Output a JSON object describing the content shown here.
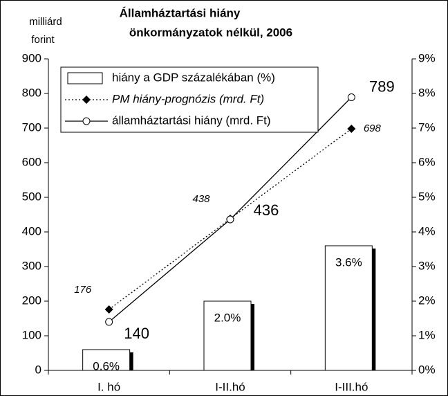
{
  "chart_data": {
    "type": "bar-line",
    "title": [
      "Államháztartási hiány",
      "önkormányzatok nélkül, 2006"
    ],
    "y_label": [
      "milliárd",
      "forint"
    ],
    "categories": [
      "I. hó",
      "I-II.hó",
      "I-III.hó"
    ],
    "ylim": [
      0,
      900
    ],
    "yticks": [
      0,
      100,
      200,
      300,
      400,
      500,
      600,
      700,
      800,
      900
    ],
    "y2lim": [
      0,
      9
    ],
    "y2ticks": [
      {
        "value": 0,
        "label": "0%"
      },
      {
        "value": 1,
        "label": "1%"
      },
      {
        "value": 2,
        "label": "2%"
      },
      {
        "value": 3,
        "label": "3%"
      },
      {
        "value": 4,
        "label": "4%"
      },
      {
        "value": 5,
        "label": "5%"
      },
      {
        "value": 6,
        "label": "6%"
      },
      {
        "value": 7,
        "label": "7%"
      },
      {
        "value": 8,
        "label": "8%"
      },
      {
        "value": 9,
        "label": "9%"
      }
    ],
    "legend": "upper left",
    "series": [
      {
        "name": "hiány a GDP százalékában (%)",
        "type": "bar",
        "axis": "y2",
        "color": "#ffffff",
        "values": [
          0.6,
          2.0,
          3.6
        ],
        "value_labels": [
          "0.6%",
          "2.0%",
          "3.6%"
        ]
      },
      {
        "name": "PM hiány-prognózis (mrd. Ft)",
        "type": "line",
        "style": "dotted",
        "marker": "diamond",
        "color": "#000000",
        "values": [
          176,
          438,
          698
        ]
      },
      {
        "name": "államháztartási hiány (mrd. Ft)",
        "type": "line",
        "style": "solid",
        "marker": "circle",
        "color": "#000000",
        "values": [
          140,
          436,
          789
        ]
      }
    ]
  }
}
